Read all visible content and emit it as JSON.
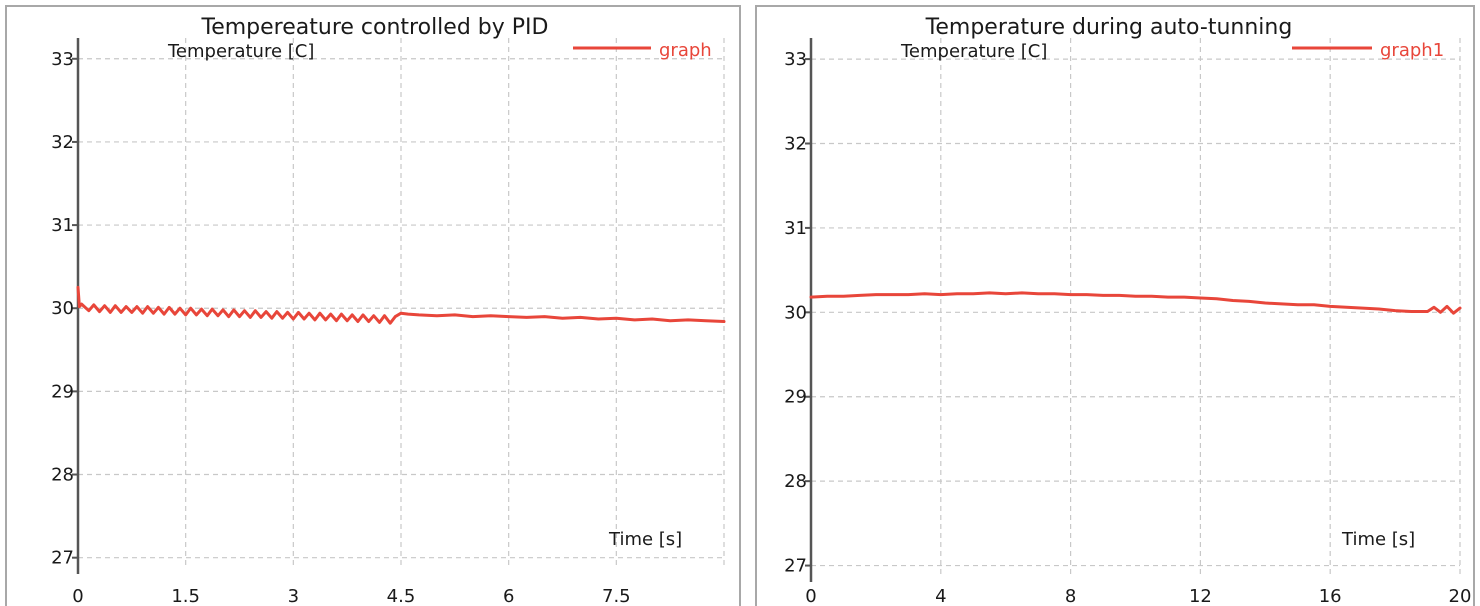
{
  "colors": {
    "series": "#e8463a",
    "grid": "#c8c8c8",
    "axis": "#555555",
    "frame": "#a8a8a8"
  },
  "chart_data": [
    {
      "type": "line",
      "title": "Tempereature controlled by PID",
      "xlabel": "Time [s]",
      "ylabel": "Temperature [C]",
      "xlim": [
        0,
        9
      ],
      "ylim": [
        26.9,
        33.25
      ],
      "xticks": [
        0,
        1.5,
        3,
        4.5,
        6,
        7.5
      ],
      "xtick_labels": [
        "0",
        "1.5",
        "3",
        "4.5",
        "6",
        "7.5"
      ],
      "xgrid": [
        0,
        1.5,
        3,
        4.5,
        6,
        7.5,
        9
      ],
      "yticks": [
        27,
        28,
        29,
        30,
        31,
        32,
        33
      ],
      "ytick_labels": [
        "27",
        "28",
        "29",
        "30",
        "31",
        "32",
        "33"
      ],
      "grid": true,
      "legend_position": "top-right",
      "series": [
        {
          "name": "graph",
          "x": [
            0,
            0.02,
            0.05,
            0.15,
            0.22,
            0.3,
            0.37,
            0.45,
            0.52,
            0.6,
            0.67,
            0.75,
            0.82,
            0.9,
            0.97,
            1.05,
            1.12,
            1.2,
            1.27,
            1.35,
            1.42,
            1.5,
            1.57,
            1.65,
            1.72,
            1.8,
            1.87,
            1.95,
            2.02,
            2.1,
            2.17,
            2.25,
            2.32,
            2.4,
            2.47,
            2.55,
            2.62,
            2.7,
            2.77,
            2.85,
            2.92,
            3.0,
            3.07,
            3.15,
            3.22,
            3.3,
            3.37,
            3.45,
            3.52,
            3.6,
            3.67,
            3.75,
            3.82,
            3.9,
            3.97,
            4.05,
            4.12,
            4.2,
            4.27,
            4.35,
            4.42,
            4.5,
            4.6,
            4.75,
            5.0,
            5.25,
            5.5,
            5.75,
            6.0,
            6.25,
            6.5,
            6.75,
            7.0,
            7.25,
            7.5,
            7.75,
            8.0,
            8.25,
            8.5,
            8.75,
            9.0
          ],
          "values": [
            30.25,
            30.02,
            30.05,
            29.97,
            30.04,
            29.96,
            30.03,
            29.95,
            30.03,
            29.95,
            30.02,
            29.95,
            30.02,
            29.94,
            30.02,
            29.94,
            30.01,
            29.93,
            30.01,
            29.93,
            30.0,
            29.92,
            30.0,
            29.92,
            29.99,
            29.91,
            29.99,
            29.91,
            29.98,
            29.9,
            29.98,
            29.9,
            29.97,
            29.89,
            29.97,
            29.89,
            29.96,
            29.88,
            29.96,
            29.88,
            29.95,
            29.87,
            29.95,
            29.87,
            29.94,
            29.86,
            29.94,
            29.86,
            29.93,
            29.85,
            29.93,
            29.85,
            29.92,
            29.84,
            29.92,
            29.84,
            29.91,
            29.83,
            29.91,
            29.82,
            29.9,
            29.94,
            29.93,
            29.92,
            29.91,
            29.92,
            29.9,
            29.91,
            29.9,
            29.89,
            29.9,
            29.88,
            29.89,
            29.87,
            29.88,
            29.86,
            29.87,
            29.85,
            29.86,
            29.85,
            29.84
          ]
        }
      ]
    },
    {
      "type": "line",
      "title": "Temperature during auto-tunning",
      "xlabel": "Time [s]",
      "ylabel": "Temperature [C]",
      "xlim": [
        0,
        20
      ],
      "ylim": [
        26.9,
        33.25
      ],
      "xticks": [
        0,
        4,
        8,
        12,
        16,
        20
      ],
      "xtick_labels": [
        "0",
        "4",
        "8",
        "12",
        "16",
        "20"
      ],
      "xgrid": [
        0,
        4,
        8,
        12,
        16,
        20
      ],
      "yticks": [
        27,
        28,
        29,
        30,
        31,
        32,
        33
      ],
      "ytick_labels": [
        "27",
        "28",
        "29",
        "30",
        "31",
        "32",
        "33"
      ],
      "grid": true,
      "legend_position": "top-right",
      "series": [
        {
          "name": "graph1",
          "x": [
            0,
            0.5,
            1,
            1.5,
            2,
            2.5,
            3,
            3.5,
            4,
            4.5,
            5,
            5.5,
            6,
            6.5,
            7,
            7.5,
            8,
            8.5,
            9,
            9.5,
            10,
            10.5,
            11,
            11.5,
            12,
            12.5,
            13,
            13.5,
            14,
            14.5,
            15,
            15.5,
            16,
            16.5,
            17,
            17.5,
            18,
            18.5,
            19,
            19.2,
            19.4,
            19.6,
            19.8,
            20
          ],
          "values": [
            30.18,
            30.19,
            30.19,
            30.2,
            30.21,
            30.21,
            30.21,
            30.22,
            30.21,
            30.22,
            30.22,
            30.23,
            30.22,
            30.23,
            30.22,
            30.22,
            30.21,
            30.21,
            30.2,
            30.2,
            30.19,
            30.19,
            30.18,
            30.18,
            30.17,
            30.16,
            30.14,
            30.13,
            30.11,
            30.1,
            30.09,
            30.09,
            30.07,
            30.06,
            30.05,
            30.04,
            30.02,
            30.01,
            30.01,
            30.06,
            30.0,
            30.07,
            29.99,
            30.05
          ]
        }
      ]
    }
  ]
}
